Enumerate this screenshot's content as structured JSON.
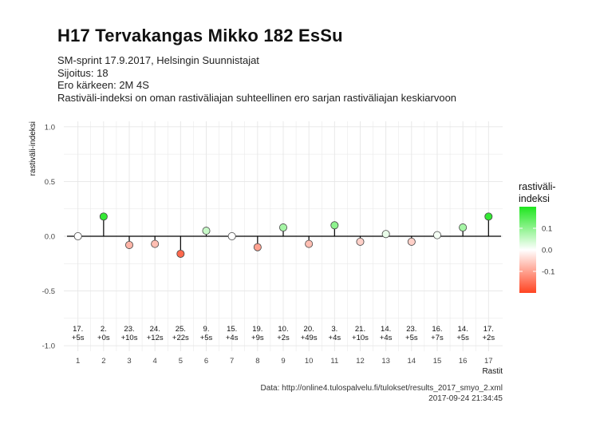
{
  "header": {
    "title": "H17 Tervakangas Mikko 182 EsSu",
    "subtitle_lines": [
      "SM-sprint 17.9.2017, Helsingin Suunnistajat",
      "Sijoitus: 18",
      "Ero kärkeen: 2M 4S",
      "Rastiväli-indeksi on oman rastiväliajan suhteellinen ero sarjan rastiväliajan keskiarvoon"
    ]
  },
  "caption": {
    "source": "Data: http://online4.tulospalvelu.fi/tulokset/results_2017_smyo_2.xml",
    "timestamp": "2017-09-24 21:34:45"
  },
  "legend": {
    "title_line1": "rastiväli-",
    "title_line2": "indeksi",
    "ticks": [
      0.1,
      0.0,
      -0.1
    ],
    "tick_labels": [
      "0.1",
      "0.0",
      "-0.1"
    ],
    "placement": "right"
  },
  "colors": {
    "positive": "#1ee61e",
    "neutral": "#ffffff",
    "negative": "#ff4422",
    "grid": "#e6e6e6",
    "stem": "#000000"
  },
  "chart_data": {
    "type": "lollipop",
    "xlabel": "Rastit",
    "ylabel": "rastiväli-indeksi",
    "ylim": [
      -1.05,
      1.05
    ],
    "yticks": [
      -1.0,
      -0.5,
      0.0,
      0.5,
      1.0
    ],
    "ytick_labels": [
      "-1.0",
      "-0.5",
      "0.0",
      "0.5",
      "1.0"
    ],
    "x": [
      1,
      2,
      3,
      4,
      5,
      6,
      7,
      8,
      9,
      10,
      11,
      12,
      13,
      14,
      15,
      16,
      17
    ],
    "values": [
      0.0,
      0.18,
      -0.08,
      -0.07,
      -0.16,
      0.05,
      0.0,
      -0.1,
      0.08,
      -0.07,
      0.1,
      -0.05,
      0.02,
      -0.05,
      0.01,
      0.08,
      0.18
    ],
    "rank_labels": [
      "17.",
      "2.",
      "23.",
      "24.",
      "25.",
      "9.",
      "15.",
      "19.",
      "10.",
      "20.",
      "3.",
      "21.",
      "14.",
      "23.",
      "16.",
      "14.",
      "17."
    ],
    "diff_labels": [
      "+5s",
      "+0s",
      "+10s",
      "+12s",
      "+22s",
      "+5s",
      "+4s",
      "+9s",
      "+2s",
      "+49s",
      "+4s",
      "+10s",
      "+4s",
      "+5s",
      "+7s",
      "+5s",
      "+2s"
    ],
    "grid": true
  }
}
